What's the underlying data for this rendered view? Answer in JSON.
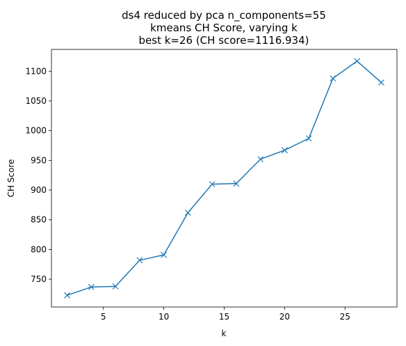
{
  "chart_data": {
    "type": "line",
    "title_lines": [
      "ds4 reduced by pca n_components=55",
      "kmeans CH Score, varying k",
      "best k=26 (CH score=1116.934)"
    ],
    "xlabel": "k",
    "ylabel": "CH Score",
    "x": [
      2,
      4,
      6,
      8,
      10,
      12,
      14,
      16,
      18,
      20,
      22,
      24,
      26,
      28
    ],
    "series": [
      {
        "values": [
          723,
          737,
          738,
          782,
          791,
          862,
          910,
          911,
          952,
          967,
          987,
          1088,
          1116.934,
          1081
        ]
      }
    ],
    "xlim": [
      0.7,
      29.3
    ],
    "ylim": [
      703.3,
      1136.6
    ],
    "x_ticks": [
      5,
      10,
      15,
      20,
      25
    ],
    "y_ticks": [
      750,
      800,
      850,
      900,
      950,
      1000,
      1050,
      1100
    ],
    "marker": "x",
    "line_color": "#1f77b4",
    "grid": false,
    "legend": "none"
  }
}
